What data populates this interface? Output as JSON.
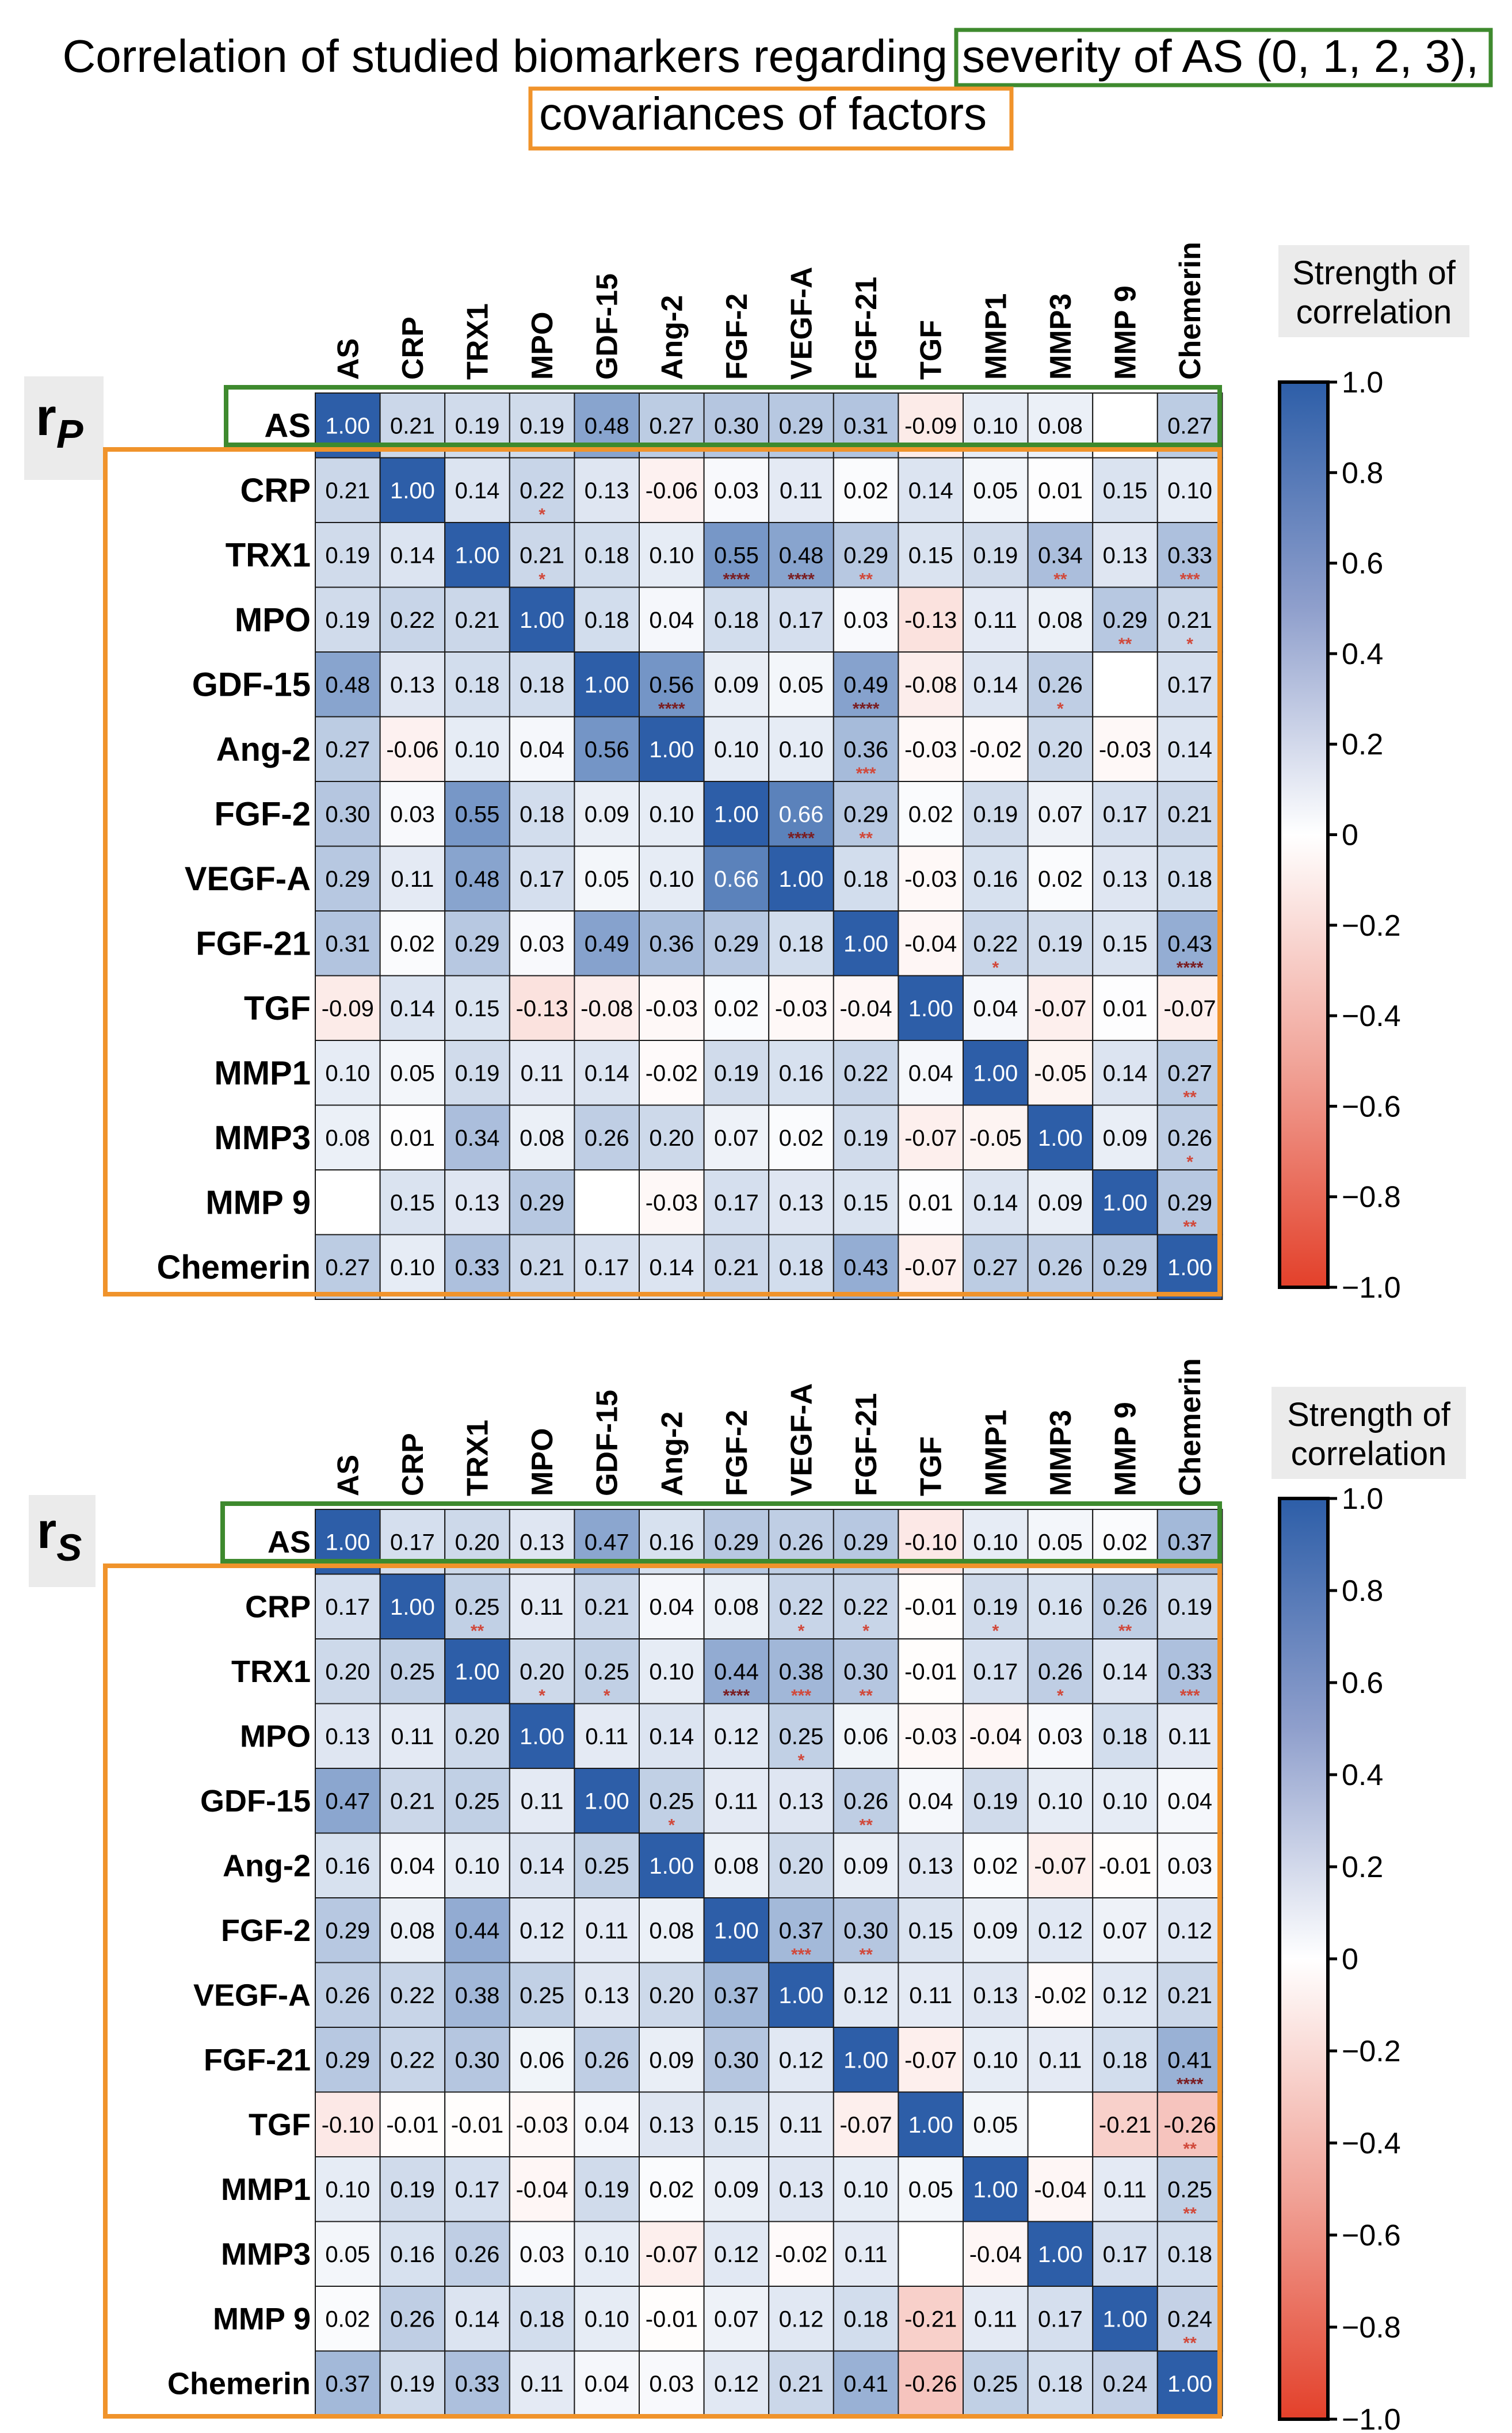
{
  "title": {
    "line1_prefix": "Correlation of studied biomarkers regarding",
    "line1_box": "severity of AS (0, 1, 2, 3),",
    "line2_box": "covariances of factors"
  },
  "colors": {
    "as_box": "#3E8A2E",
    "cov_box": "#F0932B",
    "positive": "#2D5EA8",
    "negative": "#E3402A",
    "star": "#D1493B",
    "star_dark": "#7A1E22"
  },
  "chart_data": [
    {
      "type": "heatmap",
      "id": "pearson",
      "label_main": "r",
      "label_sub": "P",
      "colorbar_title": [
        "Strength of",
        "correlation"
      ],
      "colorbar_ticks": [
        "1.0",
        "0.8",
        "0.6",
        "0.4",
        "0.2",
        "0",
        "−0.2",
        "−0.4",
        "−0.6",
        "−0.8",
        "−1.0"
      ],
      "zlim": [
        -1,
        1
      ],
      "columns": [
        "AS",
        "CRP",
        "TRX1",
        "MPO",
        "GDF-15",
        "Ang-2",
        "FGF-2",
        "VEGF-A",
        "FGF-21",
        "TGF",
        "MMP1",
        "MMP3",
        "MMP 9",
        "Chemerin"
      ],
      "rows": [
        "AS",
        "CRP",
        "TRX1",
        "MPO",
        "GDF-15",
        "Ang-2",
        "FGF-2",
        "VEGF-A",
        "FGF-21",
        "TGF",
        "MMP1",
        "MMP3",
        "MMP 9",
        "Chemerin"
      ],
      "values": [
        [
          "1.00",
          "0.21",
          "0.19",
          "0.19",
          "0.48",
          "0.27",
          "0.30",
          "0.29",
          "0.31",
          "-0.09",
          "0.10",
          "0.08",
          null,
          "0.27"
        ],
        [
          "0.21",
          "1.00",
          "0.14",
          "0.22",
          "0.13",
          "-0.06",
          "0.03",
          "0.11",
          "0.02",
          "0.14",
          "0.05",
          "0.01",
          "0.15",
          "0.10"
        ],
        [
          "0.19",
          "0.14",
          "1.00",
          "0.21",
          "0.18",
          "0.10",
          "0.55",
          "0.48",
          "0.29",
          "0.15",
          "0.19",
          "0.34",
          "0.13",
          "0.33"
        ],
        [
          "0.19",
          "0.22",
          "0.21",
          "1.00",
          "0.18",
          "0.04",
          "0.18",
          "0.17",
          "0.03",
          "-0.13",
          "0.11",
          "0.08",
          "0.29",
          "0.21"
        ],
        [
          "0.48",
          "0.13",
          "0.18",
          "0.18",
          "1.00",
          "0.56",
          "0.09",
          "0.05",
          "0.49",
          "-0.08",
          "0.14",
          "0.26",
          null,
          "0.17"
        ],
        [
          "0.27",
          "-0.06",
          "0.10",
          "0.04",
          "0.56",
          "1.00",
          "0.10",
          "0.10",
          "0.36",
          "-0.03",
          "-0.02",
          "0.20",
          "-0.03",
          "0.14"
        ],
        [
          "0.30",
          "0.03",
          "0.55",
          "0.18",
          "0.09",
          "0.10",
          "1.00",
          "0.66",
          "0.29",
          "0.02",
          "0.19",
          "0.07",
          "0.17",
          "0.21"
        ],
        [
          "0.29",
          "0.11",
          "0.48",
          "0.17",
          "0.05",
          "0.10",
          "0.66",
          "1.00",
          "0.18",
          "-0.03",
          "0.16",
          "0.02",
          "0.13",
          "0.18"
        ],
        [
          "0.31",
          "0.02",
          "0.29",
          "0.03",
          "0.49",
          "0.36",
          "0.29",
          "0.18",
          "1.00",
          "-0.04",
          "0.22",
          "0.19",
          "0.15",
          "0.43"
        ],
        [
          "-0.09",
          "0.14",
          "0.15",
          "-0.13",
          "-0.08",
          "-0.03",
          "0.02",
          "-0.03",
          "-0.04",
          "1.00",
          "0.04",
          "-0.07",
          "0.01",
          "-0.07"
        ],
        [
          "0.10",
          "0.05",
          "0.19",
          "0.11",
          "0.14",
          "-0.02",
          "0.19",
          "0.16",
          "0.22",
          "0.04",
          "1.00",
          "-0.05",
          "0.14",
          "0.27"
        ],
        [
          "0.08",
          "0.01",
          "0.34",
          "0.08",
          "0.26",
          "0.20",
          "0.07",
          "0.02",
          "0.19",
          "-0.07",
          "-0.05",
          "1.00",
          "0.09",
          "0.26"
        ],
        [
          null,
          "0.15",
          "0.13",
          "0.29",
          null,
          "-0.03",
          "0.17",
          "0.13",
          "0.15",
          "0.01",
          "0.14",
          "0.09",
          "1.00",
          "0.29"
        ],
        [
          "0.27",
          "0.10",
          "0.33",
          "0.21",
          "0.17",
          "0.14",
          "0.21",
          "0.18",
          "0.43",
          "-0.07",
          "0.27",
          "0.26",
          "0.29",
          "1.00"
        ]
      ],
      "stars": [
        [
          0,
          1,
          "*"
        ],
        [
          0,
          4,
          "****"
        ],
        [
          0,
          5,
          "*"
        ],
        [
          0,
          6,
          "**"
        ],
        [
          0,
          7,
          "**"
        ],
        [
          0,
          8,
          "***"
        ],
        [
          0,
          13,
          "**"
        ],
        [
          1,
          3,
          "*"
        ],
        [
          2,
          3,
          "*"
        ],
        [
          2,
          6,
          "****"
        ],
        [
          2,
          7,
          "****"
        ],
        [
          2,
          8,
          "**"
        ],
        [
          2,
          11,
          "**"
        ],
        [
          2,
          13,
          "***"
        ],
        [
          3,
          12,
          "**"
        ],
        [
          3,
          13,
          "*"
        ],
        [
          4,
          5,
          "****"
        ],
        [
          4,
          8,
          "****"
        ],
        [
          4,
          11,
          "*"
        ],
        [
          5,
          8,
          "***"
        ],
        [
          6,
          7,
          "****"
        ],
        [
          6,
          8,
          "**"
        ],
        [
          8,
          10,
          "*"
        ],
        [
          8,
          13,
          "****"
        ],
        [
          10,
          13,
          "**"
        ],
        [
          11,
          13,
          "*"
        ],
        [
          12,
          13,
          "**"
        ]
      ]
    },
    {
      "type": "heatmap",
      "id": "spearman",
      "label_main": "r",
      "label_sub": "S",
      "colorbar_title": [
        "Strength of",
        "correlation"
      ],
      "colorbar_ticks": [
        "1.0",
        "0.8",
        "0.6",
        "0.4",
        "0.2",
        "0",
        "−0.2",
        "−0.4",
        "−0.6",
        "−0.8",
        "−1.0"
      ],
      "zlim": [
        -1,
        1
      ],
      "columns": [
        "AS",
        "CRP",
        "TRX1",
        "MPO",
        "GDF-15",
        "Ang-2",
        "FGF-2",
        "VEGF-A",
        "FGF-21",
        "TGF",
        "MMP1",
        "MMP3",
        "MMP 9",
        "Chemerin"
      ],
      "rows": [
        "AS",
        "CRP",
        "TRX1",
        "MPO",
        "GDF-15",
        "Ang-2",
        "FGF-2",
        "VEGF-A",
        "FGF-21",
        "TGF",
        "MMP1",
        "MMP3",
        "MMP 9",
        "Chemerin"
      ],
      "values": [
        [
          "1.00",
          "0.17",
          "0.20",
          "0.13",
          "0.47",
          "0.16",
          "0.29",
          "0.26",
          "0.29",
          "-0.10",
          "0.10",
          "0.05",
          "0.02",
          "0.37"
        ],
        [
          "0.17",
          "1.00",
          "0.25",
          "0.11",
          "0.21",
          "0.04",
          "0.08",
          "0.22",
          "0.22",
          "-0.01",
          "0.19",
          "0.16",
          "0.26",
          "0.19"
        ],
        [
          "0.20",
          "0.25",
          "1.00",
          "0.20",
          "0.25",
          "0.10",
          "0.44",
          "0.38",
          "0.30",
          "-0.01",
          "0.17",
          "0.26",
          "0.14",
          "0.33"
        ],
        [
          "0.13",
          "0.11",
          "0.20",
          "1.00",
          "0.11",
          "0.14",
          "0.12",
          "0.25",
          "0.06",
          "-0.03",
          "-0.04",
          "0.03",
          "0.18",
          "0.11"
        ],
        [
          "0.47",
          "0.21",
          "0.25",
          "0.11",
          "1.00",
          "0.25",
          "0.11",
          "0.13",
          "0.26",
          "0.04",
          "0.19",
          "0.10",
          "0.10",
          "0.04"
        ],
        [
          "0.16",
          "0.04",
          "0.10",
          "0.14",
          "0.25",
          "1.00",
          "0.08",
          "0.20",
          "0.09",
          "0.13",
          "0.02",
          "-0.07",
          "-0.01",
          "0.03"
        ],
        [
          "0.29",
          "0.08",
          "0.44",
          "0.12",
          "0.11",
          "0.08",
          "1.00",
          "0.37",
          "0.30",
          "0.15",
          "0.09",
          "0.12",
          "0.07",
          "0.12"
        ],
        [
          "0.26",
          "0.22",
          "0.38",
          "0.25",
          "0.13",
          "0.20",
          "0.37",
          "1.00",
          "0.12",
          "0.11",
          "0.13",
          "-0.02",
          "0.12",
          "0.21"
        ],
        [
          "0.29",
          "0.22",
          "0.30",
          "0.06",
          "0.26",
          "0.09",
          "0.30",
          "0.12",
          "1.00",
          "-0.07",
          "0.10",
          "0.11",
          "0.18",
          "0.41"
        ],
        [
          "-0.10",
          "-0.01",
          "-0.01",
          "-0.03",
          "0.04",
          "0.13",
          "0.15",
          "0.11",
          "-0.07",
          "1.00",
          "0.05",
          null,
          "-0.21",
          "-0.26"
        ],
        [
          "0.10",
          "0.19",
          "0.17",
          "-0.04",
          "0.19",
          "0.02",
          "0.09",
          "0.13",
          "0.10",
          "0.05",
          "1.00",
          "-0.04",
          "0.11",
          "0.25"
        ],
        [
          "0.05",
          "0.16",
          "0.26",
          "0.03",
          "0.10",
          "-0.07",
          "0.12",
          "-0.02",
          "0.11",
          null,
          "-0.04",
          "1.00",
          "0.17",
          "0.18"
        ],
        [
          "0.02",
          "0.26",
          "0.14",
          "0.18",
          "0.10",
          "-0.01",
          "0.07",
          "0.12",
          "0.18",
          "-0.21",
          "0.11",
          "0.17",
          "1.00",
          "0.24"
        ],
        [
          "0.37",
          "0.19",
          "0.33",
          "0.11",
          "0.04",
          "0.03",
          "0.12",
          "0.21",
          "0.41",
          "-0.26",
          "0.25",
          "0.18",
          "0.24",
          "1.00"
        ]
      ],
      "stars": [
        [
          0,
          2,
          "*"
        ],
        [
          0,
          4,
          "****"
        ],
        [
          0,
          6,
          "**"
        ],
        [
          0,
          7,
          "*"
        ],
        [
          0,
          8,
          "**"
        ],
        [
          0,
          13,
          "****"
        ],
        [
          1,
          2,
          "**"
        ],
        [
          1,
          7,
          "*"
        ],
        [
          1,
          8,
          "*"
        ],
        [
          1,
          10,
          "*"
        ],
        [
          1,
          12,
          "**"
        ],
        [
          2,
          3,
          "*"
        ],
        [
          2,
          4,
          "*"
        ],
        [
          2,
          6,
          "****"
        ],
        [
          2,
          7,
          "***"
        ],
        [
          2,
          8,
          "**"
        ],
        [
          2,
          11,
          "*"
        ],
        [
          2,
          13,
          "***"
        ],
        [
          3,
          7,
          "*"
        ],
        [
          4,
          5,
          "*"
        ],
        [
          4,
          8,
          "**"
        ],
        [
          6,
          7,
          "***"
        ],
        [
          6,
          8,
          "**"
        ],
        [
          8,
          13,
          "****"
        ],
        [
          9,
          13,
          "**"
        ],
        [
          10,
          13,
          "**"
        ],
        [
          12,
          13,
          "**"
        ]
      ]
    }
  ]
}
